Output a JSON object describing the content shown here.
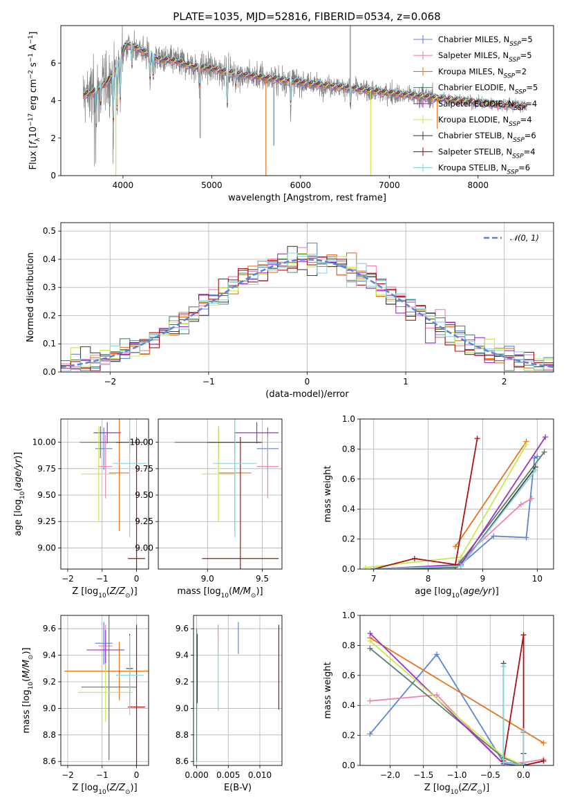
{
  "title": "PLATE=1035, MJD=52816, FIBERID=0534, z=0.068",
  "colors": {
    "Chabrier MILES": "#5b84d8",
    "Salpeter MILES": "#ee82b0",
    "Kroupa MILES": "#e8721c",
    "Chabrier ELODIE": "#558066",
    "Salpeter ELODIE": "#9b30c8",
    "Kroupa ELODIE": "#c8e84c",
    "Chabrier STELIB": "#444444",
    "Salpeter STELIB": "#aa1111",
    "Kroupa STELIB": "#88d4dc",
    "data": "#7f7f7f",
    "gaussian": "#5b84d8"
  },
  "legend_spectrum": [
    {
      "model": "Chabrier MILES",
      "n": "5"
    },
    {
      "model": "Salpeter MILES",
      "n": "5"
    },
    {
      "model": "Kroupa MILES",
      "n": "2"
    },
    {
      "model": "Chabrier ELODIE",
      "n": "5"
    },
    {
      "model": "Salpeter ELODIE",
      "n": "4"
    },
    {
      "model": "Kroupa ELODIE",
      "n": "4"
    },
    {
      "model": "Chabrier STELIB",
      "n": "6"
    },
    {
      "model": "Salpeter STELIB",
      "n": "4"
    },
    {
      "model": "Kroupa STELIB",
      "n": "6"
    }
  ],
  "legend_hist": "𝒩(0, 1)",
  "chart_data": [
    {
      "id": "spectrum",
      "type": "line",
      "xlabel": "wavelength [Angstrom, rest frame]",
      "ylabel": "Flux [f_λ 10^-17 erg cm^-2 s^-1 A^-1]",
      "xlim": [
        3300,
        8850
      ],
      "ylim": [
        0,
        8
      ],
      "xticks": [
        4000,
        5000,
        6000,
        7000,
        8000
      ],
      "yticks": [
        0,
        2,
        4,
        6
      ],
      "continuum": [
        [
          3550,
          4.3
        ],
        [
          3700,
          4.5
        ],
        [
          3800,
          4.9
        ],
        [
          3900,
          5.4
        ],
        [
          4000,
          6.7
        ],
        [
          4050,
          7.0
        ],
        [
          4100,
          6.9
        ],
        [
          4200,
          6.7
        ],
        [
          4400,
          6.2
        ],
        [
          4600,
          6.1
        ],
        [
          4800,
          5.8
        ],
        [
          5000,
          5.7
        ],
        [
          5200,
          5.5
        ],
        [
          5400,
          5.35
        ],
        [
          5600,
          5.2
        ],
        [
          5800,
          5.1
        ],
        [
          6000,
          4.95
        ],
        [
          6200,
          4.85
        ],
        [
          6400,
          4.75
        ],
        [
          6600,
          4.65
        ],
        [
          6800,
          4.5
        ],
        [
          7000,
          4.4
        ],
        [
          7200,
          4.3
        ],
        [
          7400,
          4.2
        ],
        [
          7600,
          4.1
        ],
        [
          7800,
          4.0
        ],
        [
          8000,
          3.9
        ],
        [
          8200,
          3.8
        ],
        [
          8400,
          3.75
        ],
        [
          8550,
          3.7
        ]
      ],
      "absorption_lines": [
        [
          3700,
          2.0
        ],
        [
          3750,
          1.2
        ],
        [
          3890,
          3.0
        ],
        [
          3935,
          2.6
        ],
        [
          3970,
          2.5
        ],
        [
          4101,
          1.2
        ],
        [
          4305,
          1.5
        ],
        [
          4340,
          1.4
        ],
        [
          4861,
          1.3
        ],
        [
          5175,
          2.0
        ],
        [
          5270,
          0.8
        ],
        [
          5890,
          1.4
        ],
        [
          6563,
          1.0
        ]
      ],
      "model_drops": [
        [
          3920,
          0
        ],
        [
          5610,
          0
        ],
        [
          6790,
          0
        ],
        [
          7540,
          2.5
        ]
      ],
      "data_spikes": [
        [
          6560,
          8
        ],
        [
          4870,
          2.0
        ],
        [
          5700,
          1.6
        ]
      ]
    },
    {
      "id": "residuals",
      "type": "line",
      "xlabel": "(data-model)/error",
      "ylabel": "Normed distribution",
      "xlim": [
        -2.5,
        2.5
      ],
      "ylim": [
        0,
        0.53
      ],
      "xticks": [
        -2,
        -1,
        0,
        1,
        2
      ],
      "yticks": [
        0.0,
        0.1,
        0.2,
        0.3,
        0.4,
        0.5
      ],
      "bin_width": 0.1
    },
    {
      "id": "age_vs_Z",
      "type": "scatter",
      "xlabel": "Z [log10(Z/Z⊙)]",
      "ylabel": "age  [log10(age/yr)]",
      "xlim": [
        -2.2,
        0.35
      ],
      "ylim": [
        8.8,
        10.22
      ],
      "xticks": [
        -2,
        -1,
        0
      ],
      "yticks": [
        9.0,
        9.25,
        9.5,
        9.75,
        10.0
      ],
      "points": [
        {
          "model": "Chabrier MILES",
          "x": -0.95,
          "xerr": 0.25,
          "y": 9.94,
          "yerr": 0.2
        },
        {
          "model": "Salpeter MILES",
          "x": -0.9,
          "xerr": 0.2,
          "y": 9.77,
          "yerr": 0.3
        },
        {
          "model": "Kroupa MILES",
          "x": -0.5,
          "xerr": 0.3,
          "y": 9.71,
          "yerr": 0.55
        },
        {
          "model": "Chabrier ELODIE",
          "x": -1.05,
          "xerr": 0.6,
          "y": 10.0,
          "yerr": 0.15
        },
        {
          "model": "Salpeter ELODIE",
          "x": -0.85,
          "xerr": 0.4,
          "y": 10.09,
          "yerr": 0.1
        },
        {
          "model": "Kroupa ELODIE",
          "x": -1.1,
          "xerr": 0.5,
          "y": 9.7,
          "yerr": 0.45
        },
        {
          "model": "Chabrier STELIB",
          "x": -0.2,
          "xerr": 0.4,
          "y": 10.0,
          "yerr": 0.1
        },
        {
          "model": "Salpeter STELIB",
          "x": 0.0,
          "xerr": 0.25,
          "y": 8.9,
          "yerr": 1.15
        },
        {
          "model": "Kroupa STELIB",
          "x": -0.2,
          "xerr": 0.5,
          "y": 9.8,
          "yerr": 0.7
        }
      ]
    },
    {
      "id": "age_vs_mass",
      "type": "scatter",
      "xlabel": "mass [log10(M/M⊙)]",
      "ylabel": "",
      "xlim": [
        8.55,
        9.68
      ],
      "ylim": [
        8.8,
        10.22
      ],
      "xticks": [
        9.0,
        9.5
      ],
      "yticks": [
        9.0,
        9.25,
        9.5,
        9.75,
        10.0
      ],
      "points": [
        {
          "model": "Chabrier MILES",
          "x": 9.55,
          "xerr": 0.1,
          "y": 9.94,
          "yerr": 0.2
        },
        {
          "model": "Salpeter MILES",
          "x": 9.55,
          "xerr": 0.1,
          "y": 9.77,
          "yerr": 0.3
        },
        {
          "model": "Kroupa MILES",
          "x": 9.25,
          "xerr": 0.15,
          "y": 9.71,
          "yerr": 0.55
        },
        {
          "model": "Chabrier ELODIE",
          "x": 9.1,
          "xerr": 0.4,
          "y": 10.0,
          "yerr": 0.15
        },
        {
          "model": "Salpeter ELODIE",
          "x": 9.45,
          "xerr": 0.2,
          "y": 10.09,
          "yerr": 0.1
        },
        {
          "model": "Kroupa ELODIE",
          "x": 9.1,
          "xerr": 0.15,
          "y": 9.7,
          "yerr": 0.45
        },
        {
          "model": "Chabrier STELIB",
          "x": 9.25,
          "xerr": 0.25,
          "y": 10.0,
          "yerr": 0.1
        },
        {
          "model": "Salpeter STELIB",
          "x": 9.3,
          "xerr": 0.35,
          "y": 8.9,
          "yerr": 1.15
        },
        {
          "model": "Kroupa STELIB",
          "x": 9.25,
          "xerr": 0.2,
          "y": 9.8,
          "yerr": 0.7
        }
      ]
    },
    {
      "id": "weight_vs_age",
      "type": "line",
      "xlabel": "age  [log10(age/yr)]",
      "ylabel": "mass weight",
      "xlim": [
        6.75,
        10.3
      ],
      "ylim": [
        0,
        1
      ],
      "xticks": [
        7,
        8,
        9,
        10
      ],
      "yticks": [
        0.0,
        0.2,
        0.4,
        0.6,
        0.8,
        1.0
      ],
      "series": [
        {
          "model": "Chabrier MILES",
          "x": [
            7.0,
            8.5,
            8.6,
            9.2,
            9.8,
            9.95,
            10.0
          ],
          "y": [
            0.0,
            0.01,
            0.03,
            0.22,
            0.21,
            0.74,
            0.75
          ]
        },
        {
          "model": "Salpeter MILES",
          "x": [
            7.0,
            8.5,
            8.6,
            9.7,
            9.9
          ],
          "y": [
            0.0,
            0.01,
            0.06,
            0.43,
            0.47
          ]
        },
        {
          "model": "Kroupa MILES",
          "x": [
            8.5,
            9.8
          ],
          "y": [
            0.15,
            0.85
          ]
        },
        {
          "model": "Chabrier ELODIE",
          "x": [
            7.0,
            8.5,
            8.6,
            10.13
          ],
          "y": [
            0.0,
            0.01,
            0.05,
            0.78
          ]
        },
        {
          "model": "Salpeter ELODIE",
          "x": [
            7.0,
            8.6,
            10.15
          ],
          "y": [
            0.0,
            0.03,
            0.88
          ]
        },
        {
          "model": "Kroupa ELODIE",
          "x": [
            6.85,
            8.6,
            9.8
          ],
          "y": [
            0.01,
            0.08,
            0.83
          ]
        },
        {
          "model": "Chabrier STELIB",
          "x": [
            7.0,
            8.6,
            9.97
          ],
          "y": [
            0.0,
            0.02,
            0.68
          ]
        },
        {
          "model": "Salpeter STELIB",
          "x": [
            7.0,
            7.75,
            8.5,
            8.9
          ],
          "y": [
            0.0,
            0.07,
            0.03,
            0.87
          ]
        },
        {
          "model": "Kroupa STELIB",
          "x": [
            7.0,
            8.6,
            9.97
          ],
          "y": [
            0.0,
            0.02,
            0.66
          ]
        }
      ]
    },
    {
      "id": "mass_vs_Z",
      "type": "scatter",
      "xlabel": "Z [log10(Z/Z⊙)]",
      "ylabel": "mass [log10(M/M⊙)]",
      "xlim": [
        -2.2,
        0.35
      ],
      "ylim": [
        8.57,
        9.7
      ],
      "xticks": [
        -2,
        -1,
        0
      ],
      "yticks": [
        8.6,
        8.8,
        9.0,
        9.2,
        9.4,
        9.6
      ],
      "points": [
        {
          "model": "Chabrier MILES",
          "x": -0.95,
          "xerr": 0.25,
          "y": 9.49,
          "yerr": 0.16
        },
        {
          "model": "Salpeter MILES",
          "x": -0.9,
          "xerr": 0.2,
          "y": 9.47,
          "yerr": 0.16
        },
        {
          "model": "Kroupa MILES",
          "x": -0.5,
          "xerr": 1.6,
          "y": 9.28,
          "yerr": 0.22
        },
        {
          "model": "Chabrier ELODIE",
          "x": -0.8,
          "xerr": 0.8,
          "y": 9.16,
          "yerr": 0.55
        },
        {
          "model": "Salpeter ELODIE",
          "x": -0.9,
          "xerr": 0.55,
          "y": 9.44,
          "yerr": 0.15
        },
        {
          "model": "Kroupa ELODIE",
          "x": -0.9,
          "xerr": 0.8,
          "y": 9.12,
          "yerr": 0.22
        },
        {
          "model": "Chabrier STELIB",
          "x": -0.2,
          "xerr": 0.1,
          "y": 9.3,
          "yerr": 0.26
        },
        {
          "model": "Salpeter STELIB",
          "x": 0.0,
          "xerr": 0.25,
          "y": 9.01,
          "yerr": 0.62
        },
        {
          "model": "Kroupa STELIB",
          "x": -0.2,
          "xerr": 0.4,
          "y": 9.25,
          "yerr": 0.3
        }
      ]
    },
    {
      "id": "mass_vs_EBV",
      "type": "scatter",
      "xlabel": "E(B-V)",
      "ylabel": "",
      "xlim": [
        -0.0005,
        0.0135
      ],
      "ylim": [
        8.57,
        9.7
      ],
      "xticks": [
        0.0,
        0.005,
        0.01
      ],
      "yticks": [
        8.6,
        8.8,
        9.0,
        9.2,
        9.4,
        9.6
      ],
      "points": [
        {
          "model": "Chabrier MILES",
          "x": 0.0066,
          "y": 9.53,
          "yerr": 0.12
        },
        {
          "model": "Salpeter MILES",
          "x": 0.0034,
          "y": 9.53,
          "yerr": 0.1
        },
        {
          "model": "Kroupa ELODIE",
          "x": 0.0,
          "y": 8.91,
          "yerr": 0.03
        },
        {
          "model": "Chabrier ELODIE",
          "x": 0.0,
          "y": 9.1,
          "yerr": 0.5
        },
        {
          "model": "Chabrier STELIB",
          "x": 0.0001,
          "y": 9.3,
          "yerr": 0.26
        },
        {
          "model": "Kroupa STELIB",
          "x": 0.0034,
          "y": 9.25,
          "yerr": 0.27
        },
        {
          "model": "Salpeter STELIB",
          "x": 0.013,
          "y": 9.31,
          "yerr": 0.32
        }
      ]
    },
    {
      "id": "weight_vs_Z",
      "type": "line",
      "xlabel": "Z [log10(Z/Z⊙)]",
      "ylabel": "mass weight",
      "xlim": [
        -2.45,
        0.45
      ],
      "ylim": [
        0,
        1
      ],
      "xticks": [
        -2.0,
        -1.5,
        -1.0,
        -0.5,
        0.0
      ],
      "yticks": [
        0.0,
        0.2,
        0.4,
        0.6,
        0.8,
        1.0
      ],
      "series": [
        {
          "model": "Chabrier MILES",
          "x": [
            -2.3,
            -1.3,
            -0.3,
            0.0,
            0.0
          ],
          "y": [
            0.21,
            0.74,
            0.02,
            0.01,
            0.22
          ]
        },
        {
          "model": "Salpeter MILES",
          "x": [
            -2.3,
            -1.3,
            -0.3,
            0.0,
            0.3
          ],
          "y": [
            0.43,
            0.47,
            0.01,
            0.02,
            0.04
          ]
        },
        {
          "model": "Kroupa MILES",
          "x": [
            -2.3,
            0.3
          ],
          "y": [
            0.85,
            0.15
          ]
        },
        {
          "model": "Chabrier ELODIE",
          "x": [
            -2.3,
            -0.3,
            0.0,
            0.3
          ],
          "y": [
            0.78,
            0.05,
            0.0,
            0.03
          ]
        },
        {
          "model": "Salpeter ELODIE",
          "x": [
            -2.3,
            -0.3,
            0.0,
            0.3
          ],
          "y": [
            0.88,
            0.01,
            0.0,
            0.03
          ]
        },
        {
          "model": "Kroupa ELODIE",
          "x": [
            -2.3,
            -0.3,
            0.0
          ],
          "y": [
            0.83,
            0.06,
            0.0
          ]
        },
        {
          "model": "Chabrier STELIB",
          "x": [
            -0.3,
            -0.3,
            0.0,
            0.0
          ],
          "y": [
            0.68,
            0.02,
            0.0,
            0.08
          ]
        },
        {
          "model": "Salpeter STELIB",
          "x": [
            -0.3,
            0.0,
            0.0,
            0.3
          ],
          "y": [
            0.03,
            0.87,
            0.0,
            0.03
          ]
        },
        {
          "model": "Kroupa STELIB",
          "x": [
            -0.3,
            -0.3,
            0.0,
            0.0
          ],
          "y": [
            0.66,
            0.02,
            0.0,
            0.23
          ]
        }
      ]
    }
  ]
}
